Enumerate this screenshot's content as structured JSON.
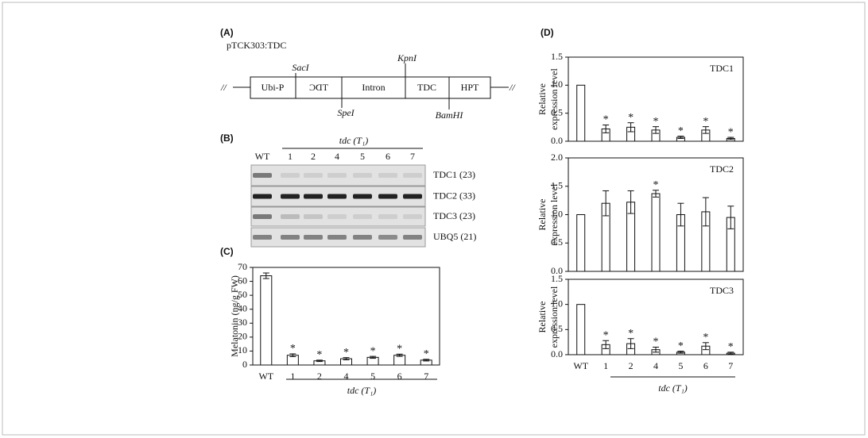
{
  "construct": {
    "label": "(A)",
    "name": "pTCK303:TDC",
    "segments": [
      "Ubi-P",
      "TDC",
      "Intron",
      "TDC",
      "HPT"
    ],
    "breaks": [
      "//",
      "//"
    ],
    "sites": [
      "SacI",
      "KpnI",
      "SpeI",
      "BamHI"
    ]
  },
  "gel": {
    "label": "(B)",
    "group": "tdc (T₁)",
    "lanes": [
      "WT",
      "1",
      "2",
      "4",
      "5",
      "6",
      "7"
    ],
    "rows": [
      "TDC1 (23)",
      "TDC2 (33)",
      "TDC3 (23)",
      "UBQ5 (21)"
    ]
  },
  "chart_data": [
    {
      "type": "bar",
      "panel_label": "(C)",
      "ylabel": [
        "Melatonin (ng/g FW)"
      ],
      "xlabel": "tdc (T₁)",
      "categories": [
        "WT",
        "1",
        "2",
        "4",
        "5",
        "6",
        "7"
      ],
      "values": [
        64,
        7,
        3,
        4.5,
        5.5,
        7,
        3.5
      ],
      "errors": [
        2,
        1,
        0.5,
        0.8,
        0.7,
        0.8,
        0.6
      ],
      "significance": [
        null,
        "*",
        "*",
        "*",
        "*",
        "*",
        "*"
      ],
      "ylim": [
        0,
        70
      ],
      "yticks": [
        0,
        10,
        20,
        30,
        40,
        50,
        60,
        70
      ]
    },
    {
      "type": "bar",
      "panel_label": "(D)",
      "title": "TDC1",
      "ylabel": [
        "Relative",
        "expression level"
      ],
      "values": [
        1,
        0.22,
        0.25,
        0.2,
        0.07,
        0.2,
        0.05
      ],
      "errors": [
        null,
        0.07,
        0.08,
        0.06,
        0.02,
        0.06,
        0.02
      ],
      "significance": [
        null,
        "*",
        "*",
        "*",
        "*",
        "*",
        "*"
      ],
      "ylim": [
        0,
        1.5
      ],
      "yticks": [
        {
          "value": 0,
          "label": "0.0"
        },
        0.5,
        {
          "value": 1,
          "label": "1.0"
        },
        1.5
      ]
    },
    {
      "type": "bar",
      "title": "TDC2",
      "ylabel": [
        "Relative",
        "expression level"
      ],
      "values": [
        1,
        1.2,
        1.22,
        1.37,
        1.0,
        1.05,
        0.95
      ],
      "errors": [
        null,
        0.22,
        0.2,
        0.06,
        0.2,
        0.25,
        0.2
      ],
      "significance": [
        null,
        null,
        null,
        "*",
        null,
        null,
        null
      ],
      "ylim": [
        0,
        2
      ],
      "yticks": [
        {
          "value": 0,
          "label": "0.0"
        },
        0.5,
        {
          "value": 1,
          "label": "1.0"
        },
        1.5,
        {
          "value": 2,
          "label": "2.0"
        }
      ]
    },
    {
      "type": "bar",
      "title": "TDC3",
      "ylabel": [
        "Relative",
        "expression level"
      ],
      "xlabel": "tdc (T₁)",
      "categories": [
        "WT",
        "1",
        "2",
        "4",
        "5",
        "6",
        "7"
      ],
      "values": [
        1,
        0.2,
        0.22,
        0.1,
        0.05,
        0.17,
        0.03
      ],
      "errors": [
        null,
        0.08,
        0.1,
        0.05,
        0.02,
        0.07,
        0.02
      ],
      "significance": [
        null,
        "*",
        "*",
        "*",
        "*",
        "*",
        "*"
      ],
      "ylim": [
        0,
        1.5
      ],
      "yticks": [
        {
          "value": 0,
          "label": "0.0"
        },
        0.5,
        {
          "value": 1,
          "label": "1.0"
        },
        1.5
      ]
    }
  ]
}
